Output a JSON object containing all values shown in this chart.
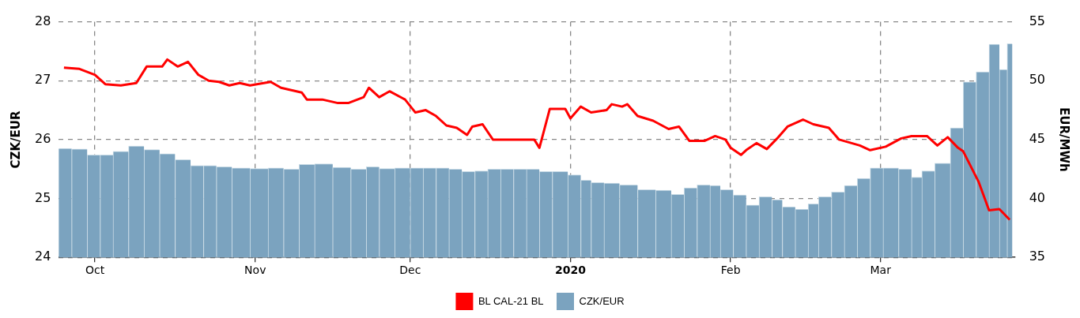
{
  "chart_data": {
    "type": "bar",
    "xlim": [
      "2019-09-24",
      "2020-03-27"
    ],
    "xticks": [
      {
        "value": "2019-10-01",
        "label": "Oct"
      },
      {
        "value": "2019-11-01",
        "label": "Nov"
      },
      {
        "value": "2019-12-01",
        "label": "Dec"
      },
      {
        "value": "2020-01-01",
        "label": "2020"
      },
      {
        "value": "2020-02-01",
        "label": "Feb"
      },
      {
        "value": "2020-03-01",
        "label": "Mar"
      }
    ],
    "ylabel": "CZK/EUR",
    "y2label": "EUR/MWh",
    "ylim": [
      24,
      28
    ],
    "yticks": [
      24,
      25,
      26,
      27,
      28
    ],
    "y2lim": [
      35,
      55
    ],
    "y2ticks": [
      35,
      40,
      45,
      50,
      55
    ],
    "grid": true,
    "legend": "bottom",
    "series": [
      {
        "name": "BL CAL-21 BL",
        "type": "line",
        "axis": "y2",
        "color": "#ff0000",
        "marker": "none",
        "line_style": "solid",
        "x": [
          "2019-09-25",
          "2019-09-28",
          "2019-10-01",
          "2019-10-03",
          "2019-10-06",
          "2019-10-09",
          "2019-10-11",
          "2019-10-14",
          "2019-10-15",
          "2019-10-17",
          "2019-10-19",
          "2019-10-21",
          "2019-10-23",
          "2019-10-25",
          "2019-10-27",
          "2019-10-29",
          "2019-10-31",
          "2019-11-04",
          "2019-11-06",
          "2019-11-10",
          "2019-11-11",
          "2019-11-14",
          "2019-11-17",
          "2019-11-19",
          "2019-11-22",
          "2019-11-23",
          "2019-11-25",
          "2019-11-27",
          "2019-11-30",
          "2019-12-02",
          "2019-12-04",
          "2019-12-06",
          "2019-12-08",
          "2019-12-10",
          "2019-12-12",
          "2019-12-13",
          "2019-12-15",
          "2019-12-17",
          "2019-12-25",
          "2019-12-26",
          "2019-12-28",
          "2019-12-31",
          "2020-01-01",
          "2020-01-03",
          "2020-01-05",
          "2020-01-08",
          "2020-01-09",
          "2020-01-11",
          "2020-01-12",
          "2020-01-14",
          "2020-01-17",
          "2020-01-20",
          "2020-01-22",
          "2020-01-24",
          "2020-01-27",
          "2020-01-29",
          "2020-01-31",
          "2020-02-01",
          "2020-02-03",
          "2020-02-04",
          "2020-02-06",
          "2020-02-08",
          "2020-02-10",
          "2020-02-12",
          "2020-02-15",
          "2020-02-17",
          "2020-02-20",
          "2020-02-22",
          "2020-02-26",
          "2020-02-28",
          "2020-03-02",
          "2020-03-05",
          "2020-03-07",
          "2020-03-10",
          "2020-03-12",
          "2020-03-14",
          "2020-03-16",
          "2020-03-17",
          "2020-03-20",
          "2020-03-22",
          "2020-03-24",
          "2020-03-26"
        ],
        "values": [
          51.1,
          51.0,
          50.5,
          49.7,
          49.6,
          49.8,
          51.2,
          51.2,
          51.8,
          51.2,
          51.6,
          50.5,
          50.0,
          49.9,
          49.6,
          49.8,
          49.6,
          49.9,
          49.4,
          49.0,
          48.4,
          48.4,
          48.1,
          48.1,
          48.6,
          49.4,
          48.6,
          49.1,
          48.4,
          47.3,
          47.5,
          47.0,
          46.2,
          46.0,
          45.4,
          46.1,
          46.3,
          45.0,
          45.0,
          44.3,
          47.6,
          47.6,
          46.8,
          47.8,
          47.3,
          47.5,
          48.0,
          47.8,
          48.0,
          47.0,
          46.6,
          45.9,
          46.1,
          44.9,
          44.9,
          45.3,
          45.0,
          44.3,
          43.7,
          44.1,
          44.7,
          44.2,
          45.1,
          46.1,
          46.7,
          46.3,
          46.0,
          45.0,
          44.5,
          44.1,
          44.4,
          45.1,
          45.3,
          45.3,
          44.5,
          45.2,
          44.3,
          44.0,
          41.4,
          39.0,
          39.1,
          38.2
        ]
      },
      {
        "name": "CZK/EUR",
        "color": "#7ba3bf",
        "x": [
          "2019-09-25",
          "2019-09-28",
          "2019-10-01",
          "2019-10-03",
          "2019-10-06",
          "2019-10-09",
          "2019-10-12",
          "2019-10-15",
          "2019-10-18",
          "2019-10-21",
          "2019-10-23",
          "2019-10-26",
          "2019-10-29",
          "2019-11-02",
          "2019-11-05",
          "2019-11-08",
          "2019-11-11",
          "2019-11-14",
          "2019-11-18",
          "2019-11-21",
          "2019-11-24",
          "2019-11-26",
          "2019-11-30",
          "2019-12-02",
          "2019-12-05",
          "2019-12-07",
          "2019-12-10",
          "2019-12-12",
          "2019-12-15",
          "2019-12-17",
          "2019-12-20",
          "2019-12-22",
          "2019-12-25",
          "2019-12-27",
          "2019-12-30",
          "2020-01-02",
          "2020-01-04",
          "2020-01-06",
          "2020-01-09",
          "2020-01-12",
          "2020-01-16",
          "2020-01-19",
          "2020-01-22",
          "2020-01-24",
          "2020-01-27",
          "2020-01-29",
          "2020-01-31",
          "2020-02-03",
          "2020-02-05",
          "2020-02-08",
          "2020-02-10",
          "2020-02-12",
          "2020-02-15",
          "2020-02-17",
          "2020-02-19",
          "2020-02-22",
          "2020-02-24",
          "2020-02-27",
          "2020-02-29",
          "2020-03-03",
          "2020-03-06",
          "2020-03-08",
          "2020-03-10",
          "2020-03-13",
          "2020-03-16",
          "2020-03-18",
          "2020-03-21",
          "2020-03-23",
          "2020-03-25",
          "2020-03-26"
        ],
        "values": [
          25.85,
          25.84,
          25.74,
          25.74,
          25.8,
          25.89,
          25.83,
          25.76,
          25.66,
          25.56,
          25.56,
          25.54,
          25.52,
          25.51,
          25.52,
          25.5,
          25.58,
          25.59,
          25.53,
          25.5,
          25.54,
          25.51,
          25.52,
          25.52,
          25.52,
          25.52,
          25.5,
          25.46,
          25.47,
          25.5,
          25.5,
          25.5,
          25.5,
          25.46,
          25.46,
          25.4,
          25.31,
          25.27,
          25.26,
          25.23,
          25.15,
          25.14,
          25.07,
          25.18,
          25.23,
          25.22,
          25.15,
          25.06,
          24.89,
          25.03,
          24.98,
          24.86,
          24.82,
          24.91,
          25.03,
          25.11,
          25.22,
          25.34,
          25.52,
          25.52,
          25.5,
          25.36,
          25.47,
          25.6,
          26.2,
          26.98,
          27.15,
          27.62,
          27.19,
          27.63
        ]
      }
    ]
  }
}
